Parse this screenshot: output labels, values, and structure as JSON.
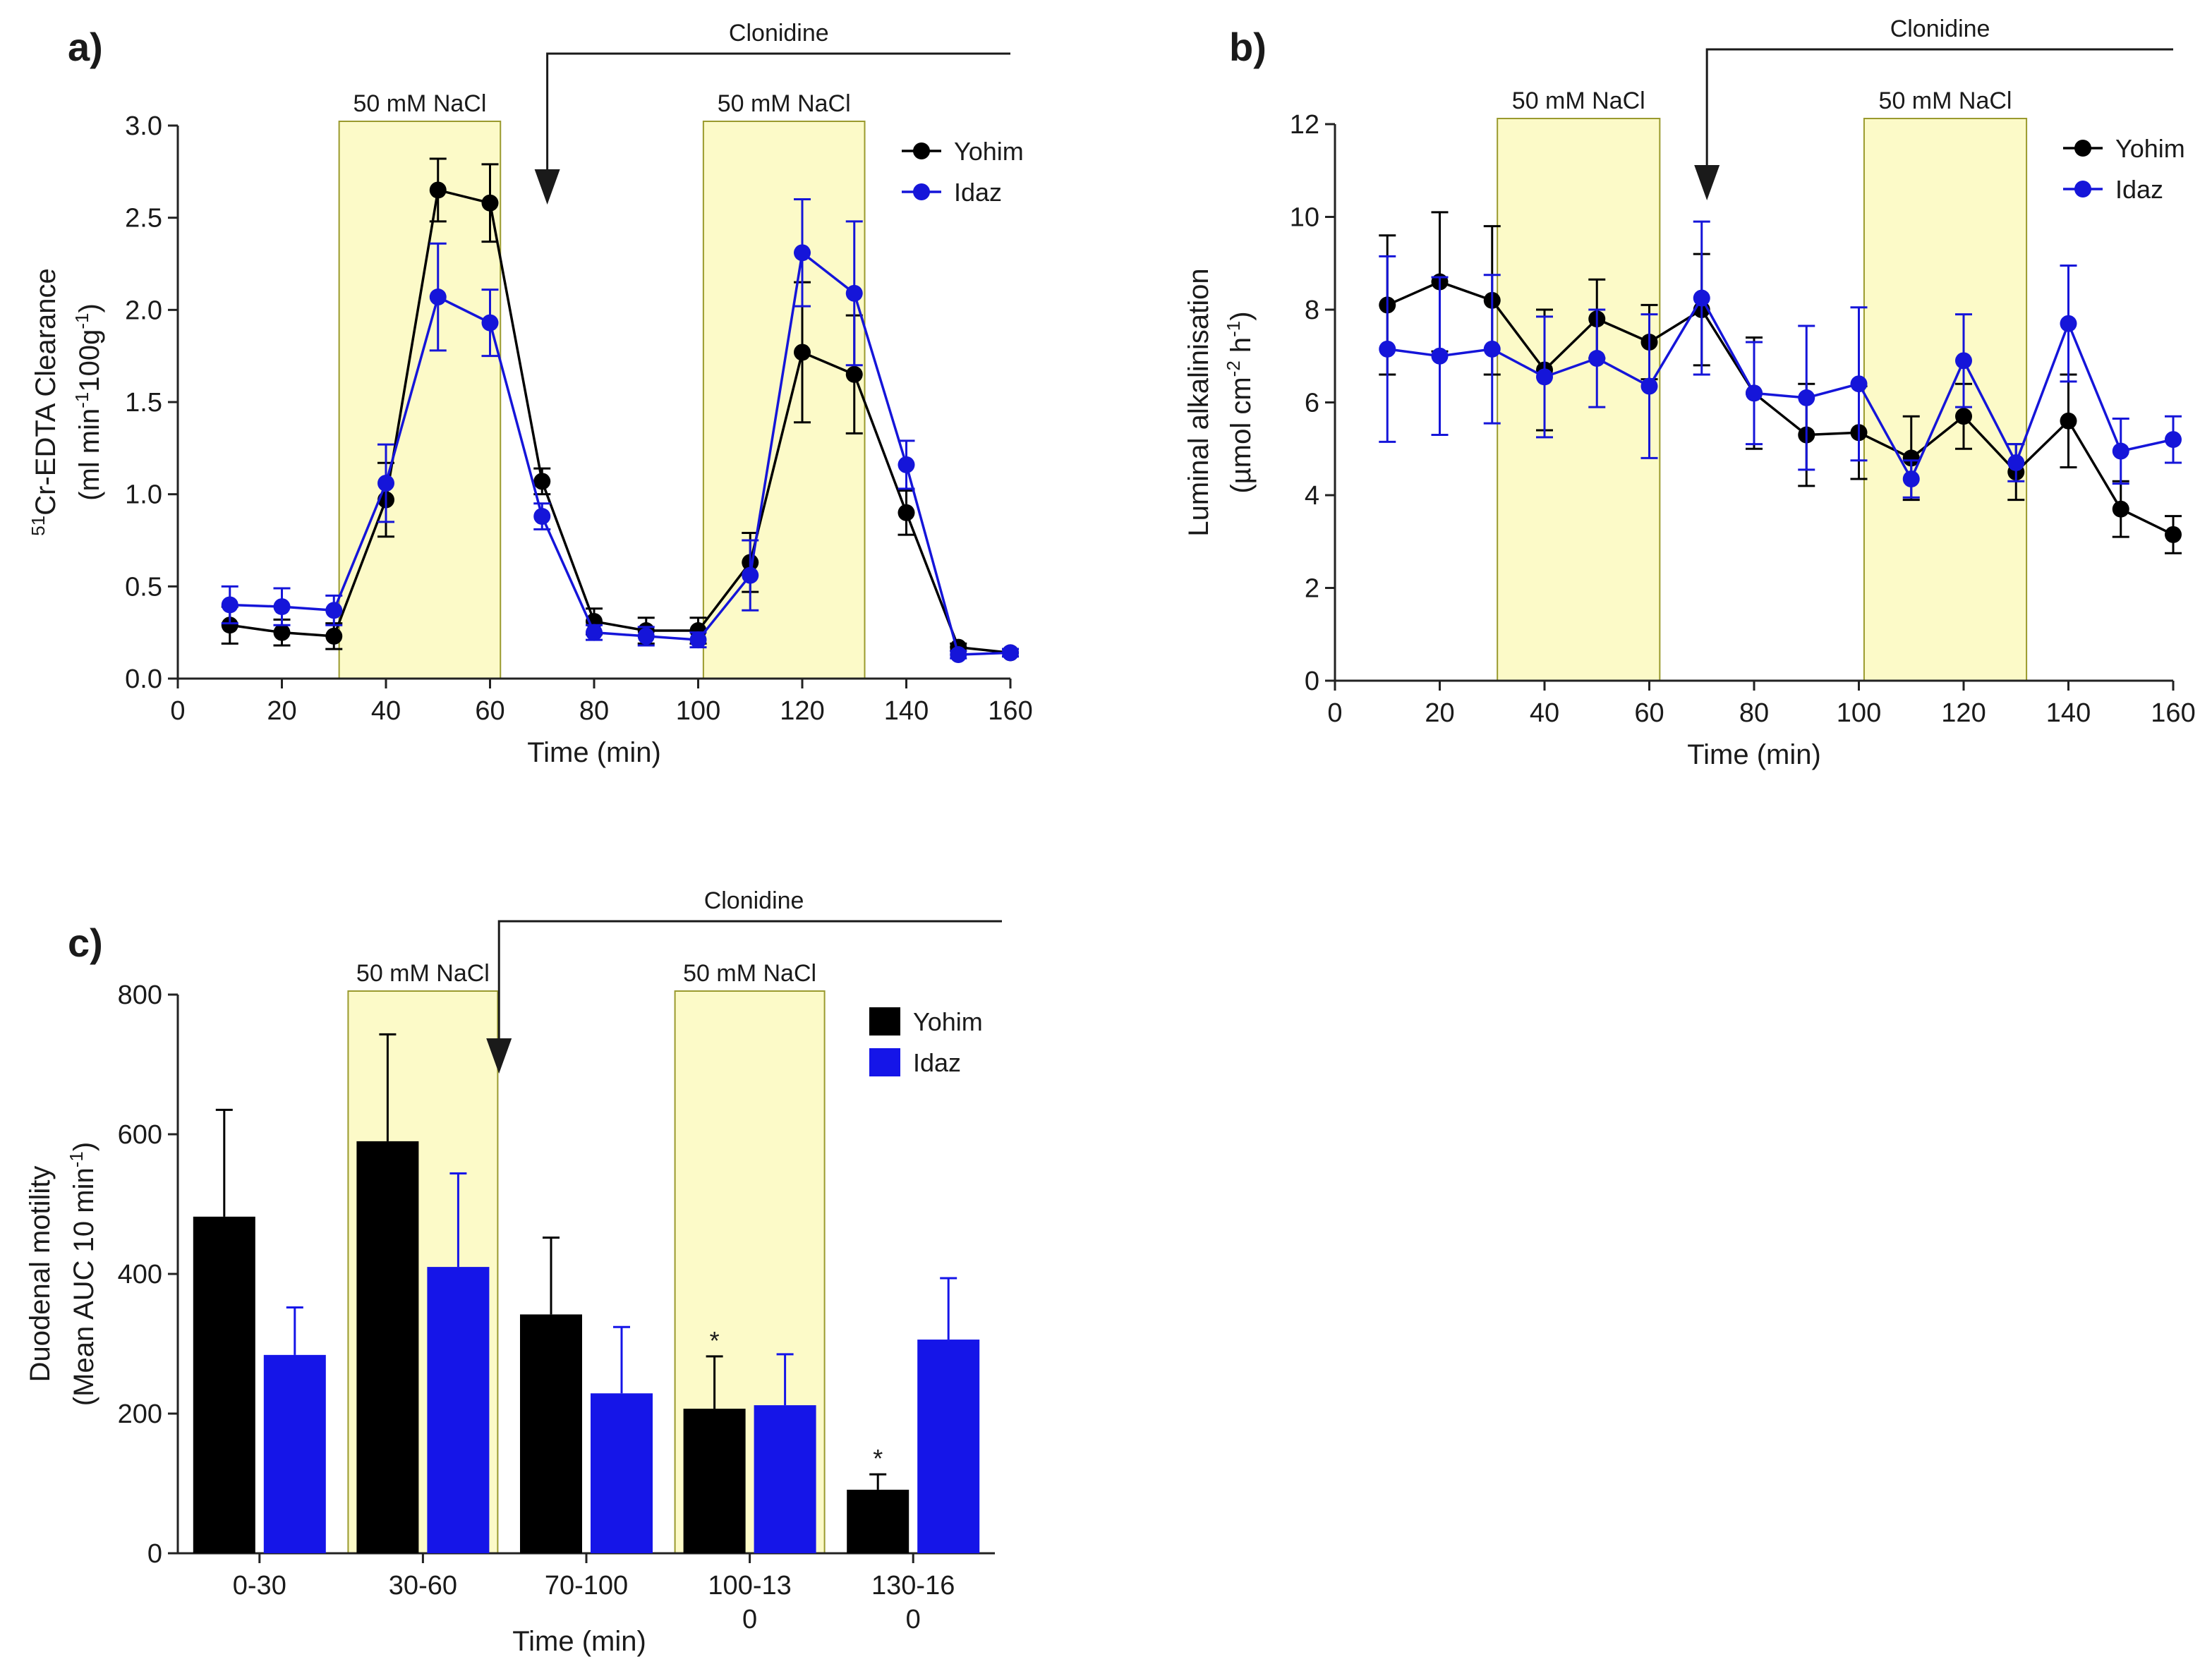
{
  "chart_data": [
    {
      "panel": "a)",
      "type": "line",
      "xlabel": "Time (min)",
      "ylabel_line1": "51Cr-EDTA Clearance",
      "ylabel_line2": "(ml min-1100g-1)",
      "xlim": [
        0,
        160
      ],
      "ylim": [
        0,
        3.0
      ],
      "xticks": [
        0,
        20,
        40,
        60,
        80,
        100,
        120,
        140,
        160
      ],
      "yticks": [
        0.0,
        0.5,
        1.0,
        1.5,
        2.0,
        2.5,
        3.0
      ],
      "ytick_labels": [
        "0.0",
        "0.5",
        "1.0",
        "1.5",
        "2.0",
        "2.5",
        "3.0"
      ],
      "bands": [
        {
          "label": "50 mM NaCl",
          "x0": 31,
          "x1": 62
        },
        {
          "label": "50 mM NaCl",
          "x0": 101,
          "x1": 132
        }
      ],
      "treatment": {
        "label": "Clonidine",
        "start_x": 71
      },
      "legend": "top-right",
      "series": [
        {
          "name": "Yohim",
          "color": "#000000",
          "x": [
            10,
            20,
            30,
            40,
            50,
            60,
            70,
            80,
            90,
            100,
            110,
            120,
            130,
            140,
            150,
            160
          ],
          "y": [
            0.29,
            0.25,
            0.23,
            0.97,
            2.65,
            2.58,
            1.07,
            0.31,
            0.26,
            0.26,
            0.63,
            1.77,
            1.65,
            0.9,
            0.17,
            0.14
          ],
          "err": [
            0.1,
            0.07,
            0.07,
            0.2,
            0.17,
            0.21,
            0.07,
            0.07,
            0.07,
            0.07,
            0.16,
            0.38,
            0.32,
            0.12,
            0.02,
            0.02
          ]
        },
        {
          "name": "Idaz",
          "color": "#1515d9",
          "x": [
            10,
            20,
            30,
            40,
            50,
            60,
            70,
            80,
            90,
            100,
            110,
            120,
            130,
            140,
            150,
            160
          ],
          "y": [
            0.4,
            0.39,
            0.37,
            1.06,
            2.07,
            1.93,
            0.88,
            0.25,
            0.23,
            0.21,
            0.56,
            2.31,
            2.09,
            1.16,
            0.13,
            0.14
          ],
          "err": [
            0.1,
            0.1,
            0.08,
            0.21,
            0.29,
            0.18,
            0.07,
            0.04,
            0.05,
            0.04,
            0.19,
            0.29,
            0.39,
            0.13,
            0.02,
            0.02
          ]
        }
      ]
    },
    {
      "panel": "b)",
      "type": "line",
      "xlabel": "Time (min)",
      "ylabel_line1": "Luminal alkalinisation",
      "ylabel_line2": "(µmol cm-2 h-1)",
      "xlim": [
        0,
        160
      ],
      "ylim": [
        0,
        12
      ],
      "xticks": [
        0,
        20,
        40,
        60,
        80,
        100,
        120,
        140,
        160
      ],
      "yticks": [
        0,
        2,
        4,
        6,
        8,
        10,
        12
      ],
      "ytick_labels": [
        "0",
        "2",
        "4",
        "6",
        "8",
        "10",
        "12"
      ],
      "bands": [
        {
          "label": "50 mM NaCl",
          "x0": 31,
          "x1": 62
        },
        {
          "label": "50 mM NaCl",
          "x0": 101,
          "x1": 132
        }
      ],
      "treatment": {
        "label": "Clonidine",
        "start_x": 71
      },
      "legend": "top-right",
      "series": [
        {
          "name": "Yohim",
          "color": "#000000",
          "x": [
            10,
            20,
            30,
            40,
            50,
            60,
            70,
            80,
            90,
            100,
            110,
            120,
            130,
            140,
            150,
            160
          ],
          "y": [
            8.1,
            8.6,
            8.2,
            6.7,
            7.8,
            7.3,
            8.0,
            6.2,
            5.3,
            5.35,
            4.8,
            5.7,
            4.5,
            5.6,
            3.7,
            3.15
          ],
          "err": [
            1.5,
            1.5,
            1.6,
            1.3,
            0.85,
            0.8,
            1.2,
            1.2,
            1.1,
            1.0,
            0.9,
            0.7,
            0.6,
            1.0,
            0.6,
            0.4
          ]
        },
        {
          "name": "Idaz",
          "color": "#1515d9",
          "x": [
            10,
            20,
            30,
            40,
            50,
            60,
            70,
            80,
            90,
            100,
            110,
            120,
            130,
            140,
            150,
            160
          ],
          "y": [
            7.15,
            7.0,
            7.15,
            6.55,
            6.95,
            6.35,
            8.25,
            6.2,
            6.1,
            6.4,
            4.35,
            6.9,
            4.7,
            7.7,
            4.95,
            5.2
          ],
          "err": [
            2.0,
            1.7,
            1.6,
            1.3,
            1.05,
            1.55,
            1.65,
            1.1,
            1.55,
            1.65,
            0.4,
            1.0,
            0.4,
            1.25,
            0.7,
            0.5
          ]
        }
      ]
    },
    {
      "panel": "c)",
      "type": "bar",
      "xlabel": "Time (min)",
      "ylabel_line1": "Duodenal motility",
      "ylabel_line2": "(Mean AUC 10 min-1)",
      "categories": [
        [
          "0-30"
        ],
        [
          "30-60"
        ],
        [
          "70-100"
        ],
        [
          "100-13",
          "0"
        ],
        [
          "130-16",
          "0"
        ]
      ],
      "ylim": [
        0,
        800
      ],
      "yticks": [
        0,
        200,
        400,
        600,
        800
      ],
      "ytick_labels": [
        "0",
        "200",
        "400",
        "600",
        "800"
      ],
      "bands": [
        {
          "label": "50 mM NaCl",
          "category_index": 1
        },
        {
          "label": "50 mM NaCl",
          "category_index": 3
        }
      ],
      "treatment": {
        "label": "Clonidine",
        "start_after_category": 1
      },
      "legend": "top-right",
      "series": [
        {
          "name": "Yohim",
          "color": "#000000",
          "values": [
            482,
            590,
            342,
            207,
            91
          ],
          "err": [
            153,
            153,
            110,
            75,
            22
          ],
          "markers": [
            "",
            "",
            "",
            "*",
            "*"
          ]
        },
        {
          "name": "Idaz",
          "color": "#1515e8",
          "values": [
            284,
            410,
            229,
            212,
            306
          ],
          "err": [
            68,
            134,
            95,
            73,
            88
          ],
          "markers": [
            "",
            "",
            "",
            "",
            ""
          ]
        }
      ]
    }
  ],
  "colors": {
    "band_fill": "#fcfac8",
    "band_stroke": "#9a9a2e",
    "axis": "#222222",
    "yohim": "#000000",
    "idaz": "#1515d9",
    "idaz_bar": "#1515e8"
  }
}
